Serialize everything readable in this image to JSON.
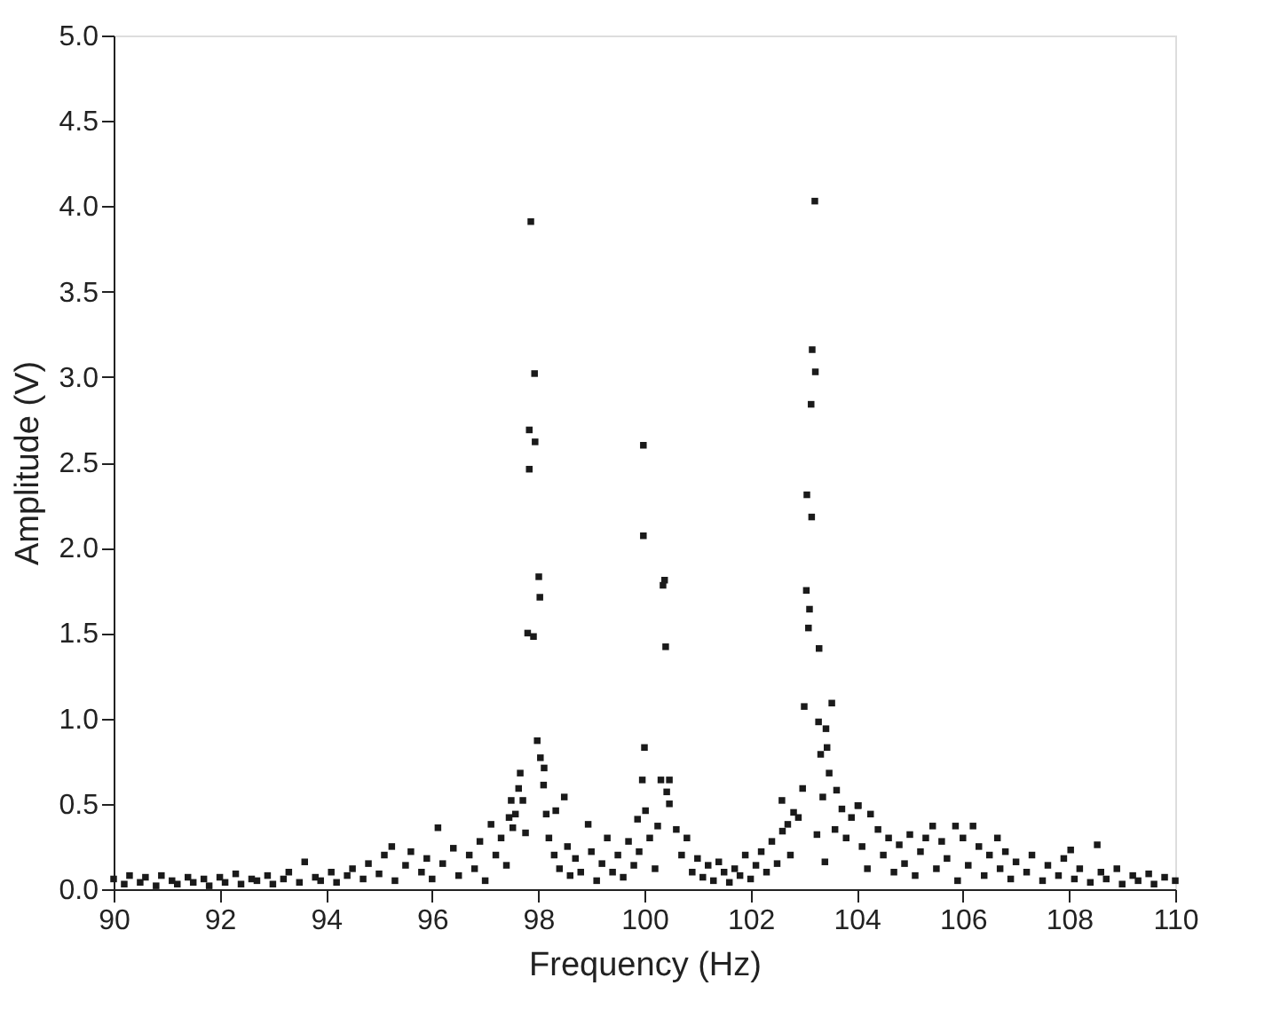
{
  "chart_data": {
    "type": "scatter",
    "xlabel": "Frequency (Hz)",
    "ylabel": "Amplitude (V)",
    "xlim": [
      90,
      110
    ],
    "xticks": [
      90,
      92,
      94,
      96,
      98,
      100,
      102,
      104,
      106,
      108,
      110
    ],
    "ylim": [
      0,
      5
    ],
    "yticks": [
      {
        "value": 0,
        "label": "0.0"
      },
      {
        "value": 0.5,
        "label": "0.5"
      },
      {
        "value": 1,
        "label": "1.0"
      },
      {
        "value": 1.5,
        "label": "1.5"
      },
      {
        "value": 2,
        "label": "2.0"
      },
      {
        "value": 2.5,
        "label": "2.5"
      },
      {
        "value": 3,
        "label": "3.0"
      },
      {
        "value": 3.5,
        "label": "3.5"
      },
      {
        "value": 4,
        "label": "4.0"
      },
      {
        "value": 4.5,
        "label": "4.5"
      },
      {
        "value": 5,
        "label": "5.0"
      }
    ],
    "grid": false,
    "marker": "square",
    "series": [
      {
        "color": "#1a1a1a",
        "x": [
          97.86,
          97.93,
          97.83,
          97.94,
          97.83,
          98.01,
          98.03,
          97.8,
          97.91,
          97.98,
          98.04,
          98.11,
          97.66,
          97.63,
          98.1,
          97.49,
          97.71,
          97.57,
          98.49,
          98.33,
          98.15,
          97.52,
          97.76,
          99.98,
          99.98,
          100.38,
          100.35,
          100.4,
          100.0,
          99.96,
          100.31,
          100.47,
          100.42,
          100.47,
          100.02,
          99.87,
          100.25,
          98.94,
          103.21,
          103.16,
          103.22,
          103.14,
          103.06,
          103.15,
          103.05,
          103.11,
          103.09,
          103.29,
          103.01,
          103.53,
          103.28,
          103.42,
          103.44,
          103.32,
          103.48,
          102.98,
          102.59,
          103.36,
          103.62,
          102.81,
          103.72,
          104.03,
          102.7,
          103.59,
          103.25,
          103.4,
          104.02,
          104.26,
          106.19,
          105.86,
          106.65,
          108.03,
          108.53,
          105.43,
          90.0,
          90.2,
          90.3,
          90.5,
          90.6,
          90.8,
          90.9,
          91.1,
          91.2,
          91.4,
          91.5,
          91.7,
          91.8,
          92.0,
          92.1,
          92.3,
          92.4,
          92.6,
          92.7,
          92.9,
          93.0,
          93.2,
          93.3,
          93.5,
          93.6,
          93.8,
          93.9,
          94.1,
          94.2,
          94.4,
          94.5,
          94.7,
          94.8,
          95.0,
          95.1,
          95.24,
          95.3,
          95.5,
          95.6,
          95.8,
          95.9,
          96.0,
          96.11,
          96.2,
          96.4,
          96.5,
          96.7,
          96.8,
          96.9,
          97.0,
          97.11,
          97.2,
          97.3,
          97.4,
          97.45,
          98.2,
          98.3,
          98.4,
          98.55,
          98.6,
          98.7,
          98.8,
          99.0,
          99.1,
          99.2,
          99.3,
          99.4,
          99.5,
          99.6,
          99.7,
          99.8,
          99.9,
          100.1,
          100.2,
          100.6,
          100.7,
          100.8,
          100.9,
          101.0,
          101.1,
          101.2,
          101.3,
          101.4,
          101.5,
          101.6,
          101.7,
          101.8,
          101.9,
          102.0,
          102.1,
          102.2,
          102.3,
          102.4,
          102.5,
          102.6,
          102.75,
          102.9,
          103.8,
          103.9,
          104.1,
          104.2,
          104.4,
          104.5,
          104.6,
          104.7,
          104.8,
          104.9,
          105.0,
          105.1,
          105.2,
          105.3,
          105.5,
          105.6,
          105.7,
          105.9,
          106.0,
          106.1,
          106.3,
          106.4,
          106.5,
          106.7,
          106.8,
          106.9,
          107.0,
          107.2,
          107.3,
          107.5,
          107.6,
          107.8,
          107.9,
          108.1,
          108.2,
          108.4,
          108.6,
          108.7,
          108.9,
          109.0,
          109.2,
          109.3,
          109.5,
          109.6,
          109.8,
          110.0
        ],
        "values": [
          3.91,
          3.02,
          2.69,
          2.62,
          2.46,
          1.83,
          1.71,
          1.5,
          1.48,
          0.87,
          0.77,
          0.71,
          0.68,
          0.59,
          0.61,
          0.52,
          0.52,
          0.44,
          0.54,
          0.46,
          0.44,
          0.36,
          0.33,
          2.6,
          2.07,
          1.81,
          1.78,
          1.42,
          0.83,
          0.64,
          0.64,
          0.64,
          0.57,
          0.5,
          0.46,
          0.41,
          0.37,
          0.38,
          4.03,
          3.16,
          3.03,
          2.84,
          2.31,
          2.18,
          1.75,
          1.64,
          1.53,
          1.41,
          1.07,
          1.09,
          0.98,
          0.94,
          0.83,
          0.79,
          0.68,
          0.59,
          0.52,
          0.54,
          0.58,
          0.45,
          0.47,
          0.49,
          0.38,
          0.35,
          0.32,
          0.16,
          0.49,
          0.44,
          0.37,
          0.37,
          0.3,
          0.23,
          0.26,
          0.37,
          0.06,
          0.03,
          0.08,
          0.04,
          0.07,
          0.02,
          0.08,
          0.05,
          0.03,
          0.07,
          0.04,
          0.06,
          0.02,
          0.07,
          0.04,
          0.09,
          0.03,
          0.06,
          0.05,
          0.08,
          0.03,
          0.06,
          0.1,
          0.04,
          0.16,
          0.07,
          0.05,
          0.1,
          0.04,
          0.08,
          0.12,
          0.06,
          0.15,
          0.09,
          0.2,
          0.25,
          0.05,
          0.14,
          0.22,
          0.1,
          0.18,
          0.06,
          0.36,
          0.15,
          0.24,
          0.08,
          0.2,
          0.12,
          0.28,
          0.05,
          0.38,
          0.2,
          0.3,
          0.14,
          0.42,
          0.3,
          0.2,
          0.12,
          0.25,
          0.08,
          0.18,
          0.1,
          0.22,
          0.05,
          0.15,
          0.3,
          0.1,
          0.2,
          0.07,
          0.28,
          0.14,
          0.22,
          0.3,
          0.12,
          0.35,
          0.2,
          0.3,
          0.1,
          0.18,
          0.07,
          0.14,
          0.05,
          0.16,
          0.1,
          0.04,
          0.12,
          0.08,
          0.2,
          0.06,
          0.14,
          0.22,
          0.1,
          0.28,
          0.15,
          0.34,
          0.2,
          0.42,
          0.3,
          0.42,
          0.25,
          0.12,
          0.35,
          0.2,
          0.3,
          0.1,
          0.26,
          0.15,
          0.32,
          0.08,
          0.22,
          0.3,
          0.12,
          0.28,
          0.18,
          0.05,
          0.3,
          0.14,
          0.25,
          0.08,
          0.2,
          0.12,
          0.22,
          0.06,
          0.16,
          0.1,
          0.2,
          0.05,
          0.14,
          0.08,
          0.18,
          0.06,
          0.12,
          0.04,
          0.1,
          0.06,
          0.12,
          0.03,
          0.08,
          0.05,
          0.09,
          0.03,
          0.07,
          0.05
        ]
      }
    ]
  }
}
